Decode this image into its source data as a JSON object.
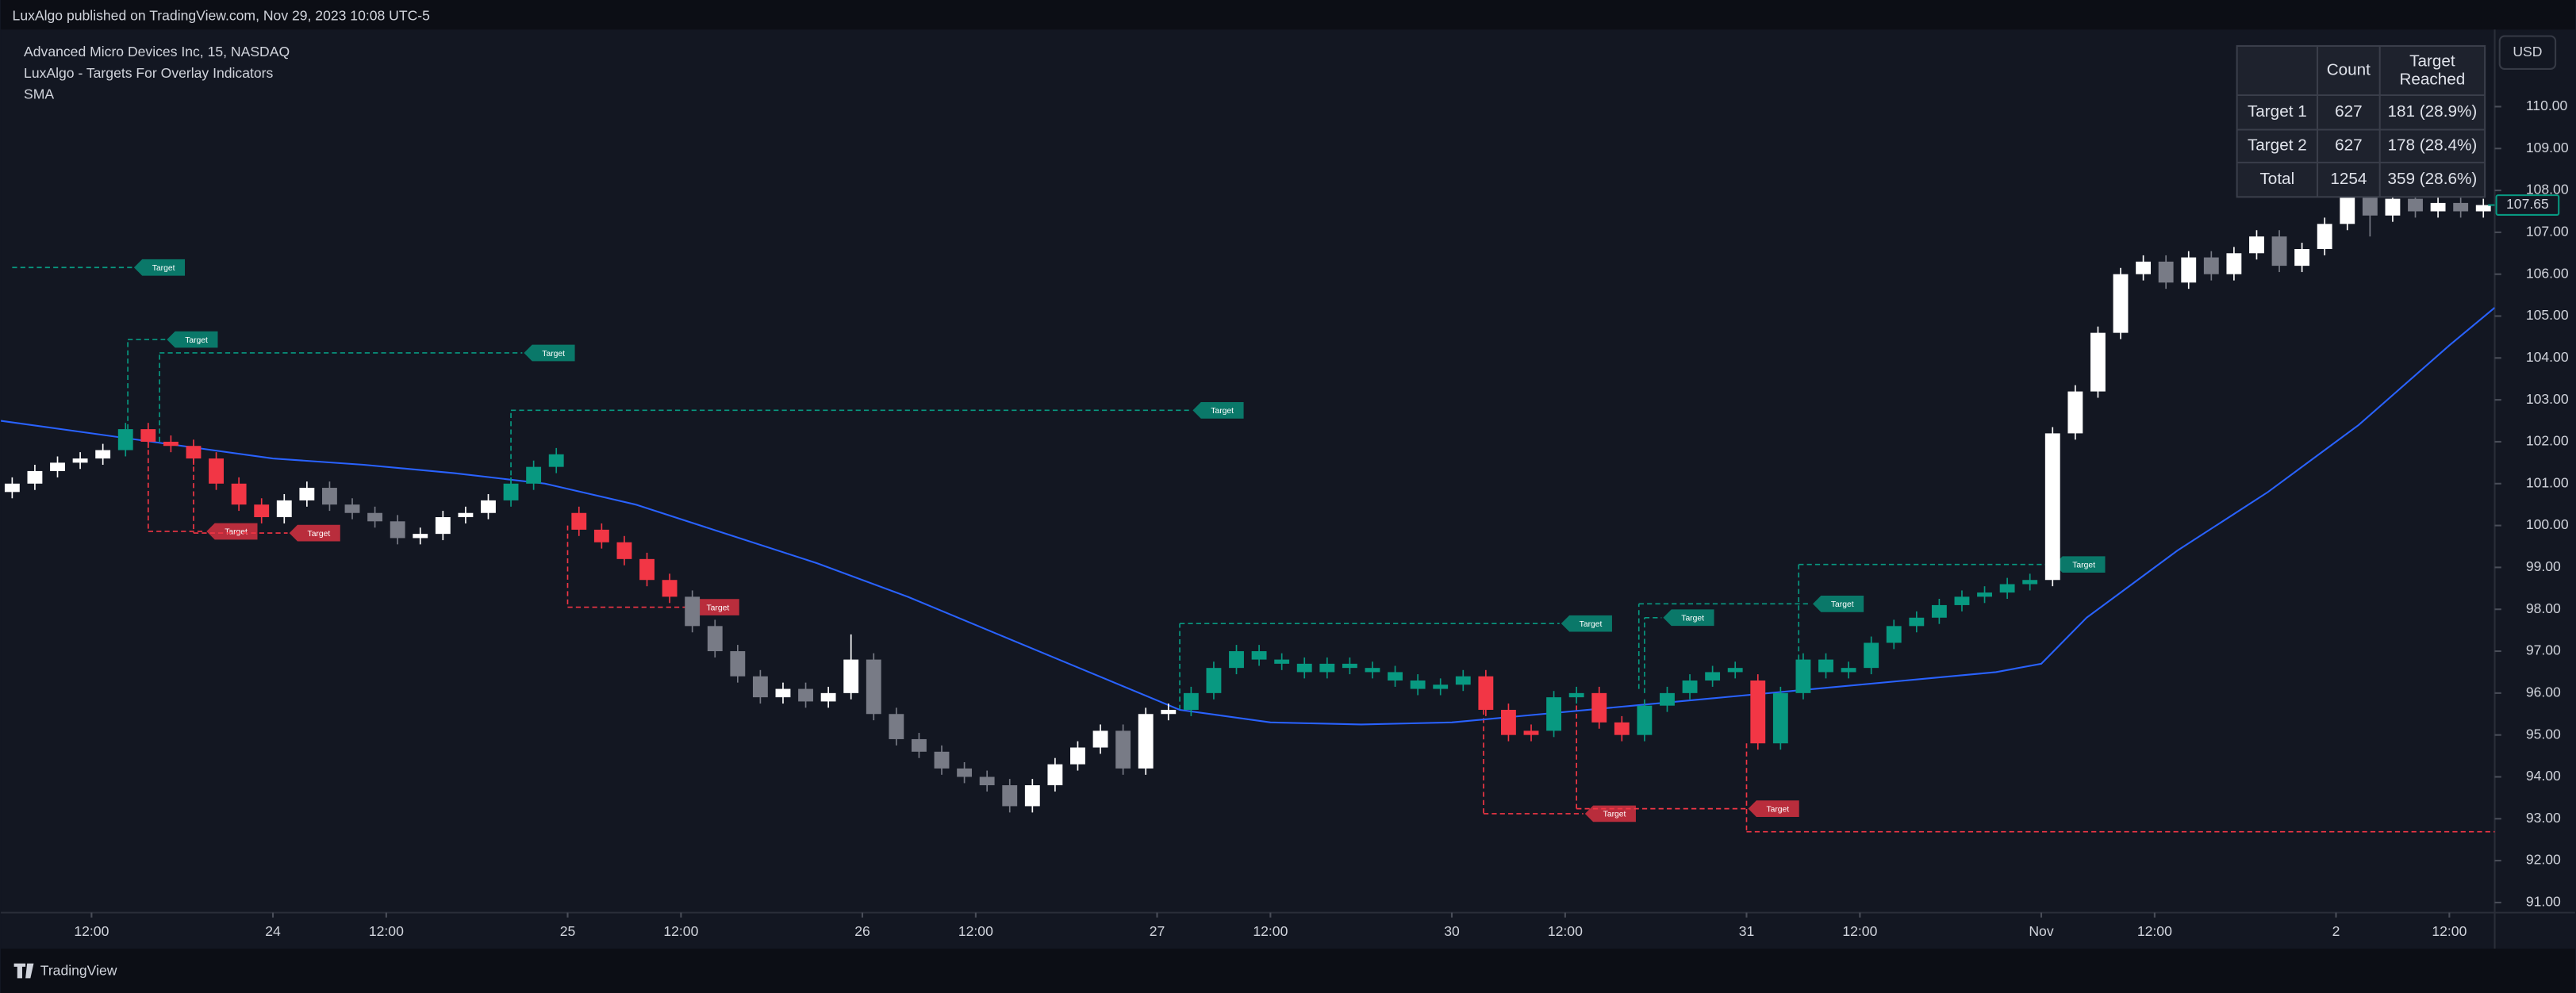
{
  "header": {
    "published": "LuxAlgo published on TradingView.com, Nov 29, 2023 10:08 UTC-5"
  },
  "chart_data": {
    "type": "candlestick",
    "title": "Advanced Micro Devices Inc, 15, NASDAQ",
    "indicator": "LuxAlgo - Targets For Overlay Indicators",
    "currency": "USD",
    "x": [
      -23,
      -21,
      -19,
      -17,
      -15,
      -13,
      -11,
      -9,
      -7,
      -5,
      -3,
      -1,
      1,
      3,
      5,
      7,
      9,
      11,
      13,
      15,
      17,
      19,
      21,
      23,
      25,
      27,
      29,
      31,
      33,
      35,
      37,
      39,
      41,
      43,
      45,
      47,
      49,
      51,
      53,
      55,
      57,
      59,
      61,
      63,
      65,
      67,
      69,
      71,
      73,
      75,
      77,
      79,
      81,
      83,
      85,
      87,
      89,
      91,
      93,
      95,
      97,
      99,
      101,
      103,
      105,
      107,
      109,
      111,
      113,
      115,
      117,
      119,
      121,
      123,
      125,
      127,
      129,
      131,
      133,
      135,
      137,
      139,
      141,
      143,
      145,
      147,
      149,
      151,
      153,
      155,
      157,
      159,
      161,
      163,
      165,
      167,
      169,
      171,
      173,
      175,
      177,
      179,
      181,
      183,
      185,
      187,
      189,
      191,
      193,
      195
    ],
    "open": [
      100.8,
      101.0,
      101.3,
      101.5,
      101.6,
      101.8,
      102.3,
      102.0,
      101.9,
      101.6,
      101.0,
      100.5,
      100.2,
      100.6,
      100.9,
      100.5,
      100.3,
      100.1,
      99.7,
      99.8,
      100.2,
      100.3,
      100.6,
      101.0,
      101.4,
      100.3,
      99.9,
      99.6,
      99.2,
      98.7,
      98.3,
      97.6,
      97.0,
      96.4,
      95.9,
      96.1,
      95.8,
      96.0,
      96.8,
      95.5,
      94.9,
      94.6,
      94.2,
      94.0,
      93.8,
      93.3,
      93.8,
      94.3,
      94.7,
      95.1,
      94.2,
      95.5,
      95.6,
      96.0,
      96.6,
      97.0,
      96.8,
      96.7,
      96.5,
      96.7,
      96.6,
      96.5,
      96.3,
      96.1,
      96.2,
      96.4,
      95.6,
      95.0,
      95.1,
      95.9,
      96.0,
      95.3,
      95.0,
      95.7,
      96.0,
      96.3,
      96.5,
      96.3,
      94.8,
      96.0,
      96.8,
      96.5,
      96.6,
      97.2,
      97.6,
      97.8,
      98.1,
      98.3,
      98.4,
      98.6,
      98.7,
      102.2,
      103.2,
      104.6,
      106.0,
      106.3,
      105.8,
      106.4,
      106.0,
      106.5,
      106.9,
      106.2,
      106.6,
      107.2,
      107.9,
      107.4,
      107.8,
      107.5,
      107.7,
      107.5
    ],
    "high": [
      101.15,
      101.45,
      101.65,
      101.75,
      101.95,
      102.45,
      102.45,
      102.15,
      102.05,
      101.75,
      101.15,
      100.65,
      100.75,
      101.05,
      101.05,
      100.65,
      100.45,
      100.25,
      99.95,
      100.35,
      100.45,
      100.75,
      101.15,
      101.55,
      101.85,
      100.45,
      100.05,
      99.75,
      99.35,
      98.85,
      98.45,
      97.75,
      97.15,
      96.55,
      96.25,
      96.25,
      96.15,
      97.4,
      96.95,
      95.65,
      95.05,
      94.75,
      94.35,
      94.15,
      93.95,
      93.95,
      94.45,
      94.85,
      95.25,
      95.25,
      95.65,
      95.75,
      96.15,
      96.75,
      97.15,
      97.15,
      96.95,
      96.85,
      96.85,
      96.85,
      96.75,
      96.65,
      96.45,
      96.35,
      96.55,
      96.55,
      95.75,
      95.25,
      96.05,
      96.15,
      96.15,
      95.45,
      95.85,
      96.15,
      96.45,
      96.65,
      96.75,
      96.45,
      96.15,
      96.95,
      96.95,
      96.75,
      97.35,
      97.75,
      97.95,
      98.25,
      98.45,
      98.55,
      98.75,
      98.85,
      102.35,
      103.35,
      104.75,
      106.15,
      106.45,
      106.45,
      106.55,
      106.55,
      106.65,
      107.05,
      107.05,
      106.75,
      107.35,
      108.05,
      108.05,
      107.95,
      107.95,
      107.85,
      107.85,
      107.8
    ],
    "low": [
      100.65,
      100.85,
      101.15,
      101.35,
      101.45,
      101.65,
      101.85,
      101.75,
      101.45,
      100.85,
      100.35,
      100.05,
      100.05,
      100.45,
      100.35,
      100.15,
      99.95,
      99.55,
      99.55,
      99.65,
      100.05,
      100.15,
      100.45,
      100.85,
      101.25,
      99.75,
      99.45,
      99.05,
      98.55,
      98.15,
      97.45,
      96.85,
      96.25,
      95.75,
      95.75,
      95.65,
      95.65,
      95.85,
      95.35,
      94.75,
      94.45,
      94.05,
      93.85,
      93.65,
      93.15,
      93.15,
      93.65,
      94.15,
      94.55,
      94.05,
      94.05,
      95.35,
      95.45,
      95.85,
      96.45,
      96.65,
      96.55,
      96.35,
      96.35,
      96.45,
      96.35,
      96.15,
      95.95,
      95.95,
      96.05,
      95.45,
      94.85,
      94.85,
      94.95,
      95.75,
      95.15,
      94.85,
      94.85,
      95.55,
      95.85,
      96.15,
      96.35,
      94.65,
      94.65,
      95.85,
      96.35,
      96.35,
      96.45,
      97.05,
      97.45,
      97.65,
      97.95,
      98.15,
      98.25,
      98.45,
      98.55,
      102.05,
      103.05,
      104.45,
      105.85,
      105.65,
      105.65,
      105.85,
      105.85,
      106.35,
      106.05,
      106.05,
      106.45,
      107.05,
      106.9,
      107.25,
      107.35,
      107.35,
      107.35,
      107.35
    ],
    "close": [
      101.0,
      101.3,
      101.5,
      101.6,
      101.8,
      102.3,
      102.0,
      101.9,
      101.6,
      101.0,
      100.5,
      100.2,
      100.6,
      100.9,
      100.5,
      100.3,
      100.1,
      99.7,
      99.8,
      100.2,
      100.3,
      100.6,
      101.0,
      101.4,
      101.7,
      99.9,
      99.6,
      99.2,
      98.7,
      98.3,
      97.6,
      97.0,
      96.4,
      95.9,
      96.1,
      95.8,
      96.0,
      96.8,
      95.5,
      94.9,
      94.6,
      94.2,
      94.0,
      93.8,
      93.3,
      93.8,
      94.3,
      94.7,
      95.1,
      94.2,
      95.5,
      95.6,
      96.0,
      96.6,
      97.0,
      96.8,
      96.7,
      96.5,
      96.7,
      96.6,
      96.5,
      96.3,
      96.1,
      96.2,
      96.4,
      95.6,
      95.0,
      95.1,
      95.9,
      96.0,
      95.3,
      95.0,
      95.7,
      96.0,
      96.3,
      96.5,
      96.6,
      94.8,
      96.0,
      96.8,
      96.5,
      96.6,
      97.2,
      97.6,
      97.8,
      98.1,
      98.3,
      98.4,
      98.6,
      98.7,
      102.2,
      103.2,
      104.6,
      106.0,
      106.3,
      105.8,
      106.4,
      106.0,
      106.5,
      106.9,
      106.2,
      106.6,
      107.2,
      107.9,
      107.4,
      107.8,
      107.5,
      107.7,
      107.5,
      107.65
    ],
    "colors": [
      "#ffffff",
      "#ffffff",
      "#ffffff",
      "#ffffff",
      "#ffffff",
      "#089981",
      "#f23645",
      "#f23645",
      "#f23645",
      "#f23645",
      "#f23645",
      "#f23645",
      "#ffffff",
      "#ffffff",
      "#787b86",
      "#787b86",
      "#787b86",
      "#787b86",
      "#ffffff",
      "#ffffff",
      "#ffffff",
      "#ffffff",
      "#089981",
      "#089981",
      "#089981",
      "#f23645",
      "#f23645",
      "#f23645",
      "#f23645",
      "#f23645",
      "#787b86",
      "#787b86",
      "#787b86",
      "#787b86",
      "#ffffff",
      "#787b86",
      "#ffffff",
      "#ffffff",
      "#787b86",
      "#787b86",
      "#787b86",
      "#787b86",
      "#787b86",
      "#787b86",
      "#787b86",
      "#ffffff",
      "#ffffff",
      "#ffffff",
      "#ffffff",
      "#787b86",
      "#ffffff",
      "#ffffff",
      "#089981",
      "#089981",
      "#089981",
      "#089981",
      "#089981",
      "#089981",
      "#089981",
      "#089981",
      "#089981",
      "#089981",
      "#089981",
      "#089981",
      "#089981",
      "#f23645",
      "#f23645",
      "#f23645",
      "#089981",
      "#089981",
      "#f23645",
      "#f23645",
      "#089981",
      "#089981",
      "#089981",
      "#089981",
      "#089981",
      "#f23645",
      "#089981",
      "#089981",
      "#089981",
      "#089981",
      "#089981",
      "#089981",
      "#089981",
      "#089981",
      "#089981",
      "#089981",
      "#089981",
      "#089981",
      "#ffffff",
      "#ffffff",
      "#ffffff",
      "#ffffff",
      "#ffffff",
      "#787b86",
      "#ffffff",
      "#787b86",
      "#ffffff",
      "#ffffff",
      "#787b86",
      "#ffffff",
      "#ffffff",
      "#ffffff",
      "#787b86",
      "#ffffff",
      "#787b86",
      "#ffffff",
      "#787b86",
      "#ffffff"
    ],
    "sma": {
      "name": "SMA",
      "color": "#2962ff",
      "x": [
        -24,
        -16,
        -8,
        0,
        8,
        16,
        24,
        32,
        40,
        48,
        56,
        64,
        72,
        80,
        88,
        96,
        104,
        112,
        120,
        128,
        136,
        144,
        152,
        156,
        160,
        168,
        176,
        184,
        192,
        196
      ],
      "values": [
        102.5,
        102.2,
        101.9,
        101.6,
        101.45,
        101.25,
        101.0,
        100.5,
        99.8,
        99.1,
        98.3,
        97.4,
        96.5,
        95.6,
        95.3,
        95.25,
        95.3,
        95.5,
        95.7,
        95.9,
        96.1,
        96.3,
        96.5,
        96.7,
        97.8,
        99.4,
        100.8,
        102.4,
        104.3,
        105.2
      ]
    },
    "targets": [
      {
        "x0": -23,
        "x1": -12.4,
        "level": 106.16,
        "entry": 106.16,
        "color": "#089981",
        "label": "Target"
      },
      {
        "x0": -12.8,
        "x1": -9.5,
        "level": 104.44,
        "entry": 102.3,
        "color": "#089981",
        "label": "Target"
      },
      {
        "x0": -10,
        "x1": 22,
        "level": 104.12,
        "entry": 102.0,
        "color": "#089981",
        "label": "Target"
      },
      {
        "x0": 21,
        "x1": 81,
        "level": 102.75,
        "entry": 101.0,
        "color": "#089981",
        "label": "Target"
      },
      {
        "x0": 80,
        "x1": 113.5,
        "level": 97.66,
        "entry": 95.6,
        "color": "#089981",
        "label": "Target"
      },
      {
        "x0": 121,
        "x1": 122.5,
        "level": 97.8,
        "entry": 96.0,
        "color": "#089981",
        "label": "Target"
      },
      {
        "x0": 120.5,
        "x1": 135.7,
        "level": 98.13,
        "entry": 96.1,
        "color": "#089981",
        "label": "Target"
      },
      {
        "x0": 134.6,
        "x1": 157,
        "level": 99.07,
        "entry": 96.8,
        "color": "#089981",
        "label": "Target"
      },
      {
        "x0": -11,
        "x1": -6,
        "level": 99.86,
        "entry": 102.0,
        "color": "#f23645",
        "label": "Target"
      },
      {
        "x0": -7,
        "x1": 1.3,
        "level": 99.82,
        "entry": 101.6,
        "color": "#f23645",
        "label": "Target"
      },
      {
        "x0": 26,
        "x1": 36.5,
        "level": 98.05,
        "entry": 100.0,
        "color": "#f23645",
        "label": "Target"
      },
      {
        "x0": 106.8,
        "x1": 115.6,
        "level": 93.12,
        "entry": 95.6,
        "color": "#f23645",
        "label": "Target"
      },
      {
        "x0": 115,
        "x1": 130,
        "level": 93.24,
        "entry": 95.9,
        "color": "#f23645",
        "label": "Target"
      },
      {
        "x0": 130,
        "x1": 196,
        "level": 92.69,
        "entry": 94.8,
        "color": "#f23645"
      }
    ],
    "last_price": 107.65,
    "last_price_color": "#089981",
    "xlim": [
      -24,
      196
    ],
    "ylim": [
      90.76,
      111.84
    ],
    "xticks": [
      {
        "value": -16,
        "label": "12:00"
      },
      {
        "value": 0,
        "label": "24"
      },
      {
        "value": 10,
        "label": "12:00"
      },
      {
        "value": 26,
        "label": "25"
      },
      {
        "value": 36,
        "label": "12:00"
      },
      {
        "value": 52,
        "label": "26"
      },
      {
        "value": 62,
        "label": "12:00"
      },
      {
        "value": 78,
        "label": "27"
      },
      {
        "value": 88,
        "label": "12:00"
      },
      {
        "value": 104,
        "label": "30"
      },
      {
        "value": 114,
        "label": "12:00"
      },
      {
        "value": 130,
        "label": "31"
      },
      {
        "value": 140,
        "label": "12:00"
      },
      {
        "value": 156,
        "label": "Nov"
      },
      {
        "value": 166,
        "label": "12:00"
      },
      {
        "value": 182,
        "label": "2"
      },
      {
        "value": 192,
        "label": "12:00"
      }
    ],
    "yticks": [
      {
        "value": 91,
        "label": "91.00"
      },
      {
        "value": 92,
        "label": "92.00"
      },
      {
        "value": 93,
        "label": "93.00"
      },
      {
        "value": 94,
        "label": "94.00"
      },
      {
        "value": 95,
        "label": "95.00"
      },
      {
        "value": 96,
        "label": "96.00"
      },
      {
        "value": 97,
        "label": "97.00"
      },
      {
        "value": 98,
        "label": "98.00"
      },
      {
        "value": 99,
        "label": "99.00"
      },
      {
        "value": 100,
        "label": "100.00"
      },
      {
        "value": 101,
        "label": "101.00"
      },
      {
        "value": 102,
        "label": "102.00"
      },
      {
        "value": 103,
        "label": "103.00"
      },
      {
        "value": 104,
        "label": "104.00"
      },
      {
        "value": 105,
        "label": "105.00"
      },
      {
        "value": 106,
        "label": "106.00"
      },
      {
        "value": 107,
        "label": "107.00"
      },
      {
        "value": 108,
        "label": "108.00"
      },
      {
        "value": 109,
        "label": "109.00"
      },
      {
        "value": 110,
        "label": "110.00"
      }
    ],
    "grid": false
  },
  "table": {
    "columns": [
      "Count",
      "Target Reached"
    ],
    "rows": [
      [
        "Target 1",
        627,
        "181 (28.9%)"
      ],
      [
        "Target 2",
        627,
        "178 (28.4%)"
      ],
      [
        "Total",
        1254,
        "359 (28.6%)"
      ]
    ]
  },
  "footer": {
    "brand": "TradingView"
  }
}
